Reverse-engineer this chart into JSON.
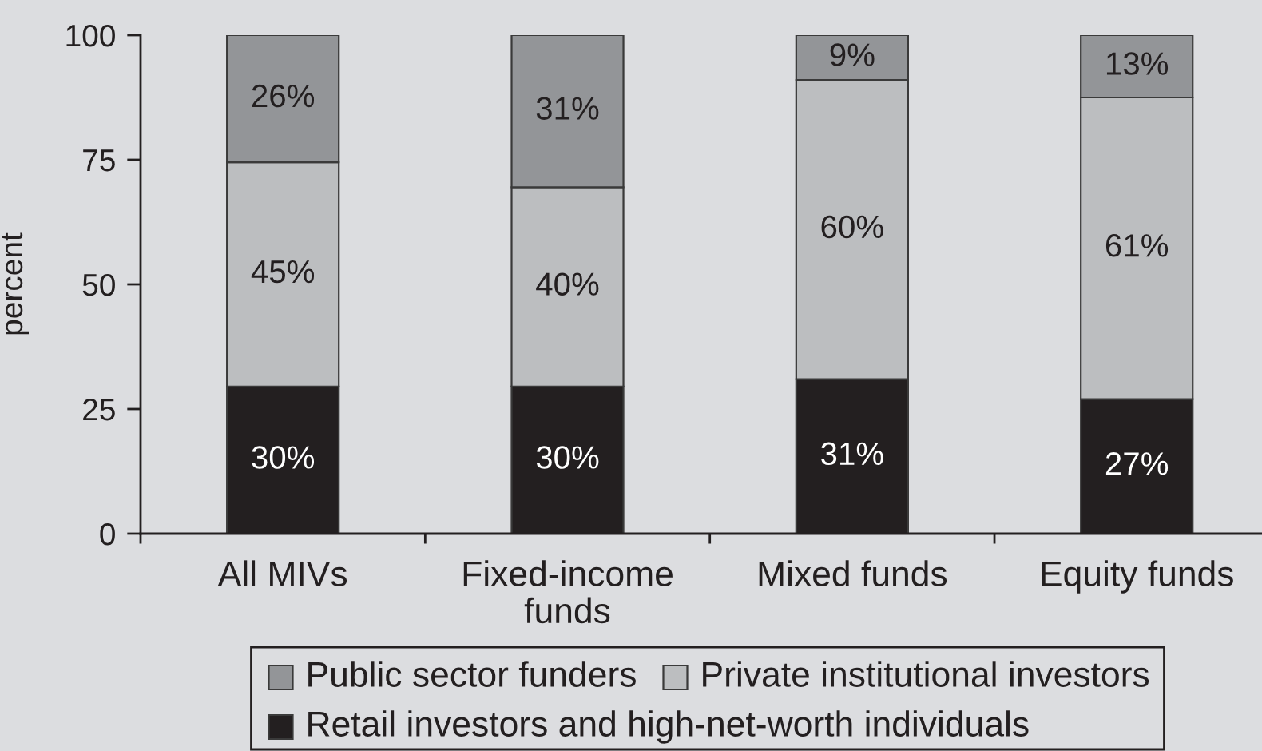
{
  "chart_data": {
    "type": "bar",
    "stacked": true,
    "ylabel": "percent",
    "categories": [
      "All MIVs",
      "Fixed-income funds",
      "Mixed funds",
      "Equity funds"
    ],
    "series": [
      {
        "name": "Retail investors and high-net-worth individuals",
        "color": "#231f20",
        "values": [
          29.5,
          29.5,
          31,
          27
        ],
        "value_labels": [
          "30%",
          "30%",
          "31%",
          "27%"
        ]
      },
      {
        "name": "Private institutional investors",
        "color": "#bcbec0",
        "values": [
          45,
          40,
          60,
          60.5
        ],
        "value_labels": [
          "45%",
          "40%",
          "60%",
          "61%"
        ]
      },
      {
        "name": "Public sector funders",
        "color": "#939598",
        "values": [
          25.5,
          30.5,
          9,
          12.5
        ],
        "value_labels": [
          "26%",
          "31%",
          "9%",
          "13%"
        ]
      }
    ],
    "ylim": [
      0,
      100
    ],
    "yticks": [
      0,
      25,
      50,
      75,
      100
    ],
    "legend": "bottom"
  }
}
